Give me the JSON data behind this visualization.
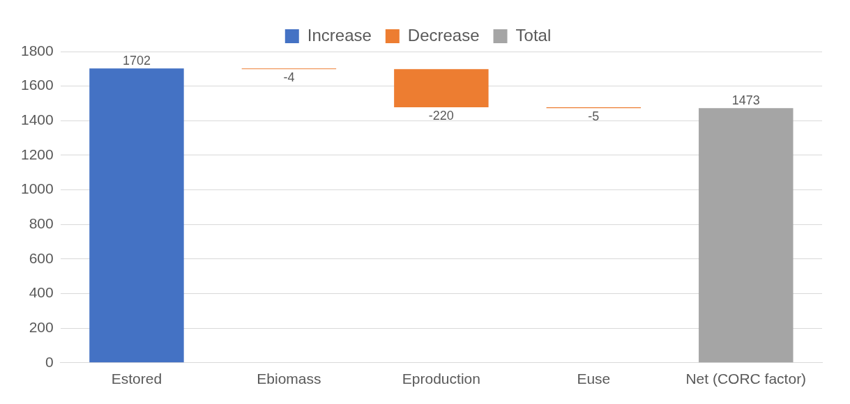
{
  "chart_data": {
    "type": "bar",
    "categories": [
      "Estored",
      "Ebiomass",
      "Eproduction",
      "Euse",
      "Net (CORC factor)"
    ],
    "series": [
      {
        "name": "Increase",
        "color": "#4472c4",
        "values": [
          1702,
          null,
          null,
          null,
          null
        ]
      },
      {
        "name": "Decrease",
        "color": "#ed7d31",
        "values": [
          null,
          -4,
          -220,
          -5,
          null
        ],
        "base": [
          null,
          1702,
          1698,
          1478,
          null
        ]
      },
      {
        "name": "Total",
        "color": "#a5a5a5",
        "values": [
          null,
          null,
          null,
          null,
          1473
        ]
      }
    ],
    "ylim": [
      0,
      1800
    ],
    "yticks": [
      0,
      200,
      400,
      600,
      800,
      1000,
      1200,
      1400,
      1600,
      1800
    ],
    "grid": "y",
    "legend": "top",
    "data_labels": true
  }
}
